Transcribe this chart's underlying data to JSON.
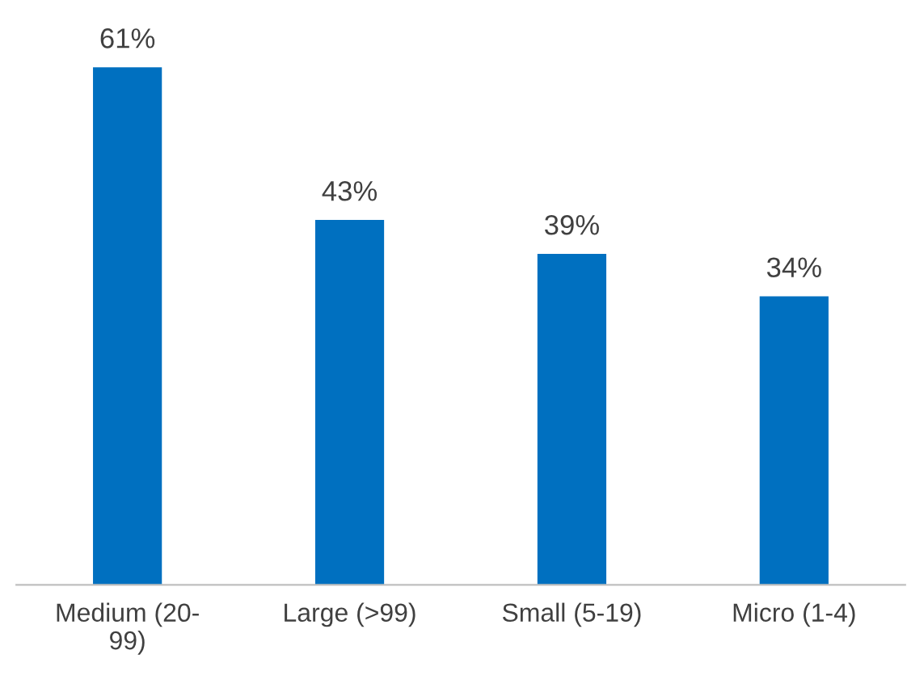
{
  "chart_data": {
    "type": "bar",
    "categories": [
      "Medium (20-99)",
      "Large (>99)",
      "Small (5-19)",
      "Micro (1-4)"
    ],
    "values": [
      61,
      43,
      39,
      34
    ],
    "color": "#0070c0",
    "data_labels": true,
    "value_labels": [
      "61%",
      "43%",
      "39%",
      "34%"
    ],
    "grid": false,
    "legend": false
  }
}
